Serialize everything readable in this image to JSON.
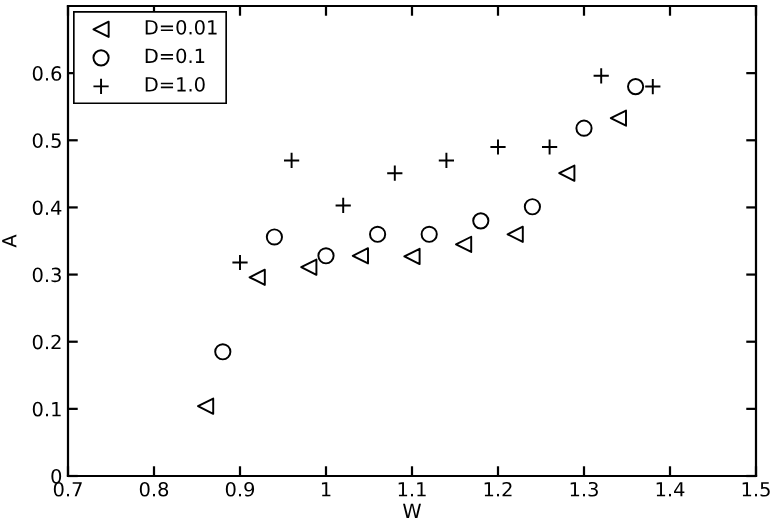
{
  "chart_data": {
    "type": "scatter",
    "xlabel": "W",
    "ylabel": "A",
    "xlim": [
      0.7,
      1.5
    ],
    "ylim": [
      0,
      0.7
    ],
    "xticks": [
      0.7,
      0.8,
      0.9,
      {
        "value": 1.0,
        "label": "1"
      },
      1.1,
      1.2,
      1.3,
      1.4,
      1.5
    ],
    "yticks": [
      {
        "value": 0,
        "label": "0"
      },
      0.1,
      0.2,
      0.3,
      0.4,
      0.5,
      0.6
    ],
    "legend": "top left",
    "grid": false,
    "series": [
      {
        "name": "D=0.01",
        "color": "#000000",
        "marker": "triangle",
        "x": [
          0.86,
          0.92,
          0.98,
          1.04,
          1.1,
          1.16,
          1.22,
          1.28,
          1.34
        ],
        "values": [
          0.104,
          0.296,
          0.311,
          0.328,
          0.327,
          0.345,
          0.36,
          0.451,
          0.533
        ]
      },
      {
        "name": "D=0.1",
        "color": "#000000",
        "marker": "circle",
        "x": [
          0.88,
          0.94,
          1.0,
          1.06,
          1.12,
          1.18,
          1.24,
          1.3,
          1.36
        ],
        "values": [
          0.185,
          0.356,
          0.328,
          0.36,
          0.36,
          0.38,
          0.401,
          0.518,
          0.58
        ]
      },
      {
        "name": "D=1.0",
        "color": "#000000",
        "marker": "cross",
        "x": [
          0.9,
          0.96,
          1.02,
          1.08,
          1.14,
          1.2,
          1.26,
          1.32,
          1.38
        ],
        "values": [
          0.318,
          0.47,
          0.403,
          0.451,
          0.47,
          0.49,
          0.49,
          0.596,
          0.58
        ]
      }
    ]
  }
}
